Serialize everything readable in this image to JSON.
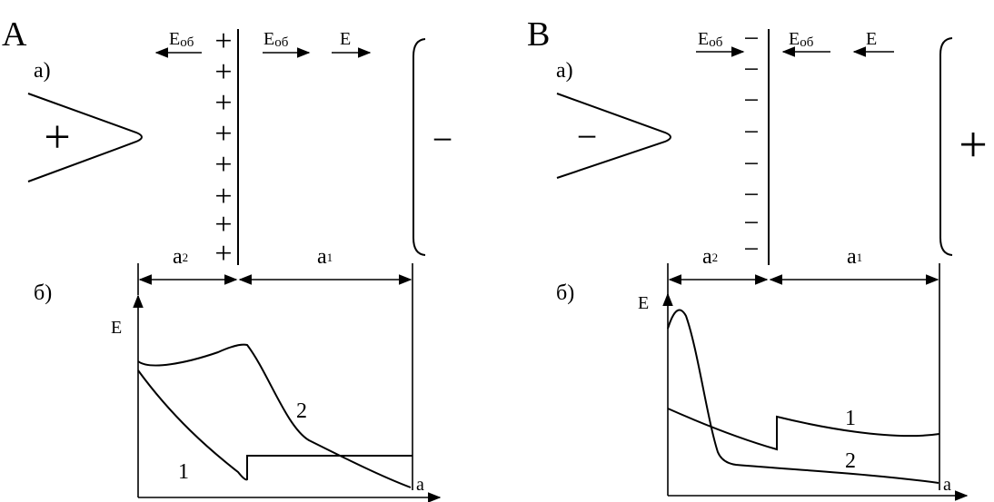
{
  "panel_a": {
    "panel_label": "A",
    "part_a_label": "а)",
    "part_b_label": "б)",
    "field_labels": {
      "e_ob_left": {
        "base": "E",
        "sub": "об"
      },
      "e_ob_right": {
        "base": "E",
        "sub": "об"
      },
      "e": "E"
    },
    "point_sign": "+",
    "plate_sign": "−",
    "charge_sign": "+",
    "dim_a2": {
      "base": "a",
      "sub": "2"
    },
    "dim_a1": {
      "base": "a",
      "sub": "1"
    },
    "y_axis": "E",
    "x_axis": "a",
    "curve_1": "1",
    "curve_2": "2"
  },
  "panel_b": {
    "panel_label": "B",
    "part_a_label": "а)",
    "part_b_label": "б)",
    "field_labels": {
      "e_ob_left": {
        "base": "E",
        "sub": "об"
      },
      "e_ob_right": {
        "base": "E",
        "sub": "об"
      },
      "e": "E"
    },
    "point_sign": "−",
    "plate_sign": "+",
    "charge_sign": "−",
    "dim_a2": {
      "base": "a",
      "sub": "2"
    },
    "dim_a1": {
      "base": "a",
      "sub": "1"
    },
    "y_axis": "E",
    "x_axis": "a",
    "curve_1": "1",
    "curve_2": "2"
  }
}
